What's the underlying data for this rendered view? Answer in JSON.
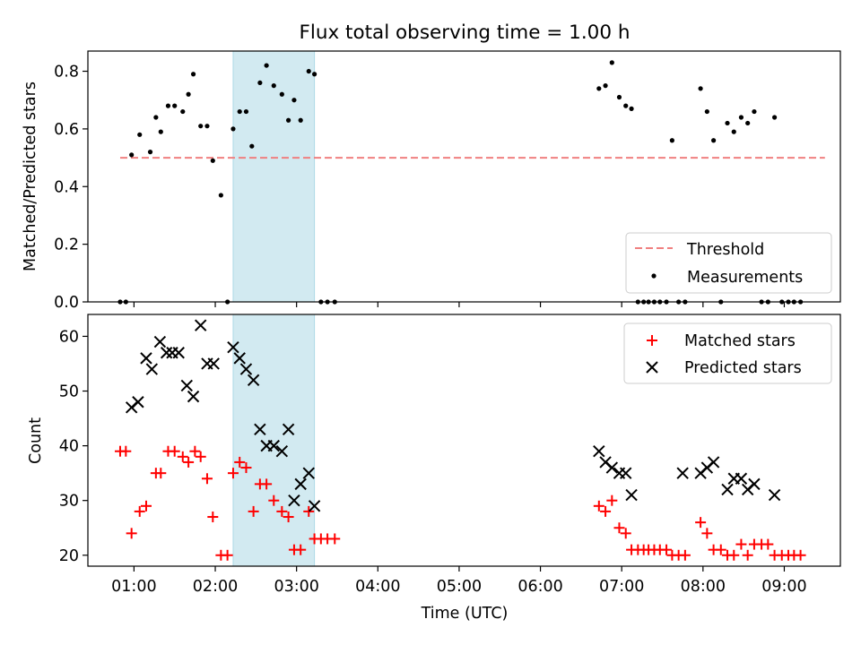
{
  "chart_data": [
    {
      "type": "scatter",
      "title": "Flux total observing time = 1.00 h",
      "ylabel": "Matched/Predicted stars",
      "ylim": [
        0,
        0.87
      ],
      "yticks": [
        "0.0",
        "0.2",
        "0.4",
        "0.6",
        "0.8"
      ],
      "yticks_values": [
        0,
        0.2,
        0.4,
        0.6,
        0.8
      ],
      "xlim_hours": [
        0.433,
        9.69
      ],
      "highlight_band_hours": [
        2.22,
        3.22
      ],
      "highlight_color": "#add8e6",
      "threshold": {
        "name": "Threshold",
        "value": 0.5,
        "x_start": 0.83,
        "x_end": 9.5,
        "color": "#f08080",
        "style": "dashed"
      },
      "series": [
        {
          "name": "Measurements",
          "color": "#000000",
          "marker": "dot",
          "x": [
            0.83,
            0.9,
            0.97,
            1.07,
            1.2,
            1.27,
            1.33,
            1.42,
            1.5,
            1.6,
            1.67,
            1.73,
            1.82,
            1.9,
            1.97,
            2.07,
            2.15,
            2.22,
            2.3,
            2.38,
            2.45,
            2.55,
            2.63,
            2.72,
            2.82,
            2.9,
            2.97,
            3.05,
            3.15,
            3.22,
            3.3,
            3.38,
            3.47,
            6.72,
            6.8,
            6.88,
            6.97,
            7.05,
            7.12,
            7.2,
            7.27,
            7.33,
            7.4,
            7.47,
            7.55,
            7.62,
            7.7,
            7.78,
            7.97,
            8.05,
            8.13,
            8.22,
            8.3,
            8.38,
            8.47,
            8.55,
            8.63,
            8.72,
            8.8,
            8.88,
            8.97,
            9.05,
            9.12,
            9.2
          ],
          "y": [
            0,
            0,
            0.51,
            0.58,
            0.52,
            0.64,
            0.59,
            0.68,
            0.68,
            0.66,
            0.72,
            0.79,
            0.61,
            0.61,
            0.49,
            0.37,
            0,
            0.6,
            0.66,
            0.66,
            0.54,
            0.76,
            0.82,
            0.75,
            0.72,
            0.63,
            0.7,
            0.63,
            0.8,
            0.79,
            0,
            0,
            0,
            0.74,
            0.75,
            0.83,
            0.71,
            0.68,
            0.67,
            0,
            0,
            0,
            0,
            0,
            0,
            0.56,
            0,
            0,
            0.74,
            0.66,
            0.56,
            0,
            0.62,
            0.59,
            0.64,
            0.62,
            0.66,
            0,
            0,
            0.64,
            0,
            0,
            0,
            0
          ]
        }
      ]
    },
    {
      "type": "scatter",
      "xlabel": "Time (UTC)",
      "ylabel": "Count",
      "ylim": [
        18,
        64
      ],
      "yticks": [
        "20",
        "30",
        "40",
        "50",
        "60"
      ],
      "yticks_values": [
        20,
        30,
        40,
        50,
        60
      ],
      "xlim_hours": [
        0.433,
        9.69
      ],
      "xticks": [
        "01:00",
        "02:00",
        "03:00",
        "04:00",
        "05:00",
        "06:00",
        "07:00",
        "08:00",
        "09:00"
      ],
      "xticks_hours": [
        1,
        2,
        3,
        4,
        5,
        6,
        7,
        8,
        9
      ],
      "highlight_band_hours": [
        2.22,
        3.22
      ],
      "highlight_color": "#add8e6",
      "series": [
        {
          "name": "Matched stars",
          "color": "#ff0000",
          "marker": "plus",
          "x": [
            0.83,
            0.9,
            0.97,
            1.07,
            1.15,
            1.27,
            1.33,
            1.42,
            1.5,
            1.6,
            1.67,
            1.75,
            1.82,
            1.9,
            1.97,
            2.07,
            2.15,
            2.22,
            2.3,
            2.38,
            2.47,
            2.55,
            2.63,
            2.72,
            2.82,
            2.9,
            2.97,
            3.05,
            3.15,
            3.22,
            3.3,
            3.38,
            3.47,
            6.72,
            6.8,
            6.88,
            6.97,
            7.05,
            7.12,
            7.2,
            7.27,
            7.33,
            7.4,
            7.47,
            7.55,
            7.62,
            7.7,
            7.78,
            7.97,
            8.05,
            8.13,
            8.22,
            8.3,
            8.38,
            8.47,
            8.55,
            8.63,
            8.72,
            8.8,
            8.88,
            8.97,
            9.05,
            9.12,
            9.2
          ],
          "y": [
            39,
            39,
            24,
            28,
            29,
            35,
            35,
            39,
            39,
            38,
            37,
            39,
            38,
            34,
            27,
            20,
            20,
            35,
            37,
            36,
            28,
            33,
            33,
            30,
            28,
            27,
            21,
            21,
            28,
            23,
            23,
            23,
            23,
            29,
            28,
            30,
            25,
            24,
            21,
            21,
            21,
            21,
            21,
            21,
            21,
            20,
            20,
            20,
            26,
            24,
            21,
            21,
            20,
            20,
            22,
            20,
            22,
            22,
            22,
            20,
            20,
            20,
            20,
            20
          ]
        },
        {
          "name": "Predicted stars",
          "color": "#000000",
          "marker": "x",
          "x": [
            0.97,
            1.05,
            1.15,
            1.22,
            1.32,
            1.4,
            1.47,
            1.55,
            1.65,
            1.73,
            1.82,
            1.9,
            1.98,
            2.22,
            2.3,
            2.38,
            2.47,
            2.55,
            2.63,
            2.72,
            2.82,
            2.9,
            2.97,
            3.05,
            3.15,
            3.22,
            6.72,
            6.8,
            6.88,
            6.97,
            7.05,
            7.12,
            7.75,
            7.97,
            8.05,
            8.13,
            8.3,
            8.38,
            8.47,
            8.55,
            8.63,
            8.88
          ],
          "y": [
            47,
            48,
            56,
            54,
            59,
            57,
            57,
            57,
            51,
            49,
            62,
            55,
            55,
            58,
            56,
            54,
            52,
            43,
            40,
            40,
            39,
            43,
            30,
            33,
            35,
            29,
            39,
            37,
            36,
            35,
            35,
            31,
            35,
            35,
            36,
            37,
            32,
            34,
            34,
            32,
            33,
            31
          ]
        }
      ]
    }
  ]
}
